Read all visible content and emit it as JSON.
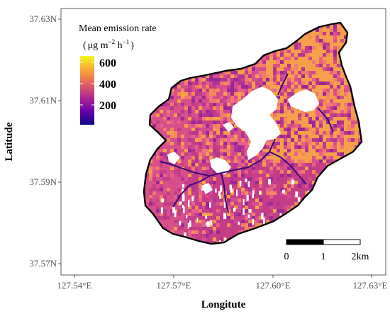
{
  "figure": {
    "x_label": "Longitute",
    "y_label": "Latitude",
    "x_ticks": [
      "127.54°E",
      "127.57°E",
      "127.60°E",
      "127.63°E"
    ],
    "y_ticks": [
      "37.63N",
      "37.61N",
      "37.59N",
      "37.57N"
    ]
  },
  "legend": {
    "title": "Mean emission rate",
    "unit_open": "(",
    "unit_mu": "μg m",
    "unit_exp1": "−2",
    "unit_h": " h",
    "unit_exp2": "−1",
    "unit_close": ")",
    "labels": [
      "600",
      "400",
      "200"
    ],
    "colors": [
      "#0d0887",
      "#6a00a8",
      "#b12a90",
      "#e16462",
      "#fca636",
      "#f0f921"
    ]
  },
  "scale_bar": {
    "labels": [
      "0",
      "1",
      "2km"
    ]
  },
  "map": {
    "fill_colors": [
      "#c43d86",
      "#d8508a",
      "#e8608a",
      "#f07a70",
      "#f48a58",
      "#f5a04a",
      "#b23493",
      "#9c2799",
      "#d34a94"
    ],
    "stream_color": "#3a0a7a",
    "nodata_color": "#ffffff",
    "border_color": "#000000"
  }
}
